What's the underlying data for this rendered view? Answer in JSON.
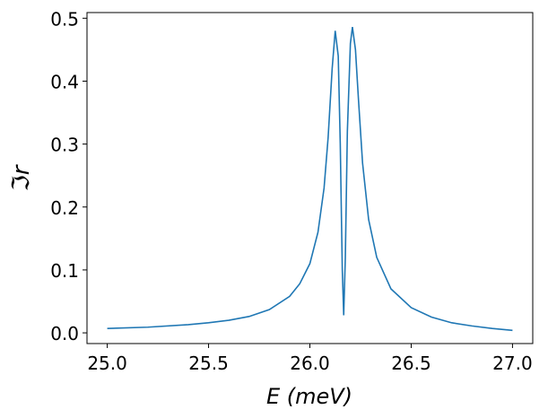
{
  "chart_data": {
    "type": "line",
    "xlabel": "E (meV)",
    "ylabel": "ℑr",
    "x": [
      25.0,
      25.2,
      25.4,
      25.5,
      25.6,
      25.7,
      25.8,
      25.9,
      25.95,
      26.0,
      26.04,
      26.07,
      26.09,
      26.11,
      26.125,
      26.14,
      26.15,
      26.16,
      26.167,
      26.175,
      26.185,
      26.2,
      26.21,
      26.225,
      26.24,
      26.26,
      26.29,
      26.33,
      26.4,
      26.5,
      26.6,
      26.7,
      26.8,
      26.9,
      27.0
    ],
    "series": [
      {
        "color": "#1f77b4",
        "values": [
          0.007,
          0.009,
          0.013,
          0.016,
          0.02,
          0.026,
          0.037,
          0.058,
          0.078,
          0.11,
          0.16,
          0.23,
          0.31,
          0.42,
          0.48,
          0.44,
          0.3,
          0.1,
          0.028,
          0.12,
          0.32,
          0.46,
          0.486,
          0.45,
          0.37,
          0.27,
          0.18,
          0.12,
          0.07,
          0.04,
          0.025,
          0.016,
          0.011,
          0.007,
          0.004
        ]
      }
    ],
    "xlim": [
      24.9,
      27.1
    ],
    "ylim": [
      -0.017,
      0.509
    ],
    "xticks": [
      {
        "value": 25,
        "label": "25.0"
      },
      25.5,
      {
        "value": 26,
        "label": "26.0"
      },
      26.5,
      {
        "value": 27,
        "label": "27.0"
      }
    ],
    "yticks": [
      {
        "value": 0,
        "label": "0.0"
      },
      0.1,
      0.2,
      0.3,
      0.4,
      0.5
    ]
  }
}
